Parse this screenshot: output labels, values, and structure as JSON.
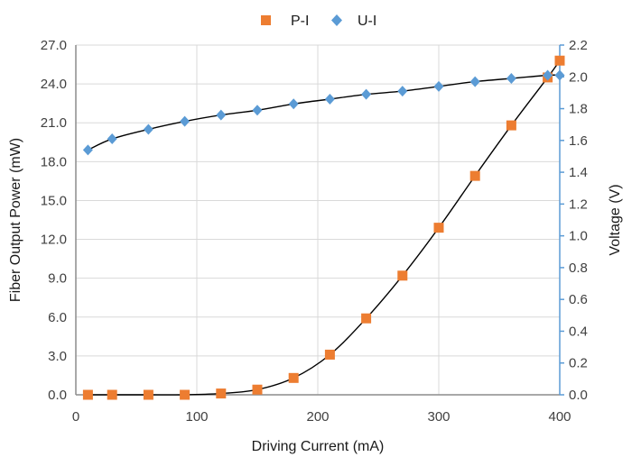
{
  "chart_data": {
    "type": "scatter",
    "xlabel": "Driving Current (mA)",
    "ylabel": "Fiber Output Power (mW)",
    "y2label": "Voltage (V)",
    "xlim": [
      0,
      400
    ],
    "ylim": [
      0,
      27
    ],
    "y2lim": [
      0,
      2.2
    ],
    "x_ticks": [
      "0",
      "100",
      "200",
      "300",
      "400"
    ],
    "y_ticks": [
      "0.0",
      "3.0",
      "6.0",
      "9.0",
      "12.0",
      "15.0",
      "18.0",
      "21.0",
      "24.0",
      "27.0"
    ],
    "y2_ticks": [
      "0.0",
      "0.2",
      "0.4",
      "0.6",
      "0.8",
      "1.0",
      "1.2",
      "1.4",
      "1.6",
      "1.8",
      "2.0",
      "2.2"
    ],
    "grid": true,
    "legend_position": "top-center",
    "series": [
      {
        "name": "P-I",
        "axis": "left",
        "marker": "square",
        "color": "#ED7D31",
        "x": [
          10,
          30,
          60,
          90,
          120,
          150,
          180,
          210,
          240,
          270,
          300,
          330,
          360,
          390,
          400
        ],
        "y": [
          0.0,
          0.0,
          0.0,
          0.0,
          0.1,
          0.4,
          1.3,
          3.1,
          5.9,
          9.2,
          12.9,
          16.9,
          20.8,
          24.5,
          25.8
        ]
      },
      {
        "name": "U-I",
        "axis": "right",
        "marker": "diamond",
        "color": "#5B9BD5",
        "x": [
          10,
          30,
          60,
          90,
          120,
          150,
          180,
          210,
          240,
          270,
          300,
          330,
          360,
          390,
          400
        ],
        "y": [
          1.54,
          1.61,
          1.67,
          1.72,
          1.76,
          1.79,
          1.83,
          1.86,
          1.89,
          1.91,
          1.94,
          1.97,
          1.99,
          2.01,
          2.01
        ]
      }
    ],
    "trendline_color": "#000000",
    "grid_color": "#D9D9D9",
    "axis_color": "#8C8C8C",
    "right_axis_color": "#5B9BD5"
  }
}
